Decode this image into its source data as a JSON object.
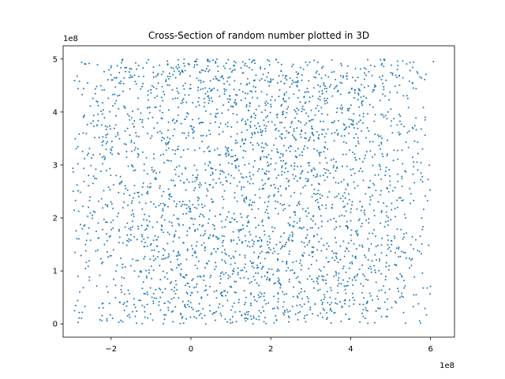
{
  "chart_data": {
    "type": "scatter",
    "title": "Cross-Section of random number plotted in 3D",
    "xlabel": "",
    "ylabel": "",
    "x_offset_label": "1e8",
    "y_offset_label": "1e8",
    "xlim": [
      -3.2,
      6.6
    ],
    "ylim": [
      -0.25,
      5.25
    ],
    "x_ticks": [
      -2,
      0,
      2,
      4,
      6
    ],
    "y_ticks": [
      0,
      1,
      2,
      3,
      4,
      5
    ],
    "x_tick_labels": [
      "−2",
      "0",
      "2",
      "4",
      "6"
    ],
    "y_tick_labels": [
      "0",
      "1",
      "2",
      "3",
      "4",
      "5"
    ],
    "grid": false,
    "legend": "none",
    "marker_color": "#1f77b4",
    "point_count": 3000,
    "x_range_of_points": [
      -3.0,
      6.1
    ],
    "y_range_of_points": [
      0.0,
      5.0
    ],
    "distribution": "uniform random, density decreasing toward x edges"
  }
}
